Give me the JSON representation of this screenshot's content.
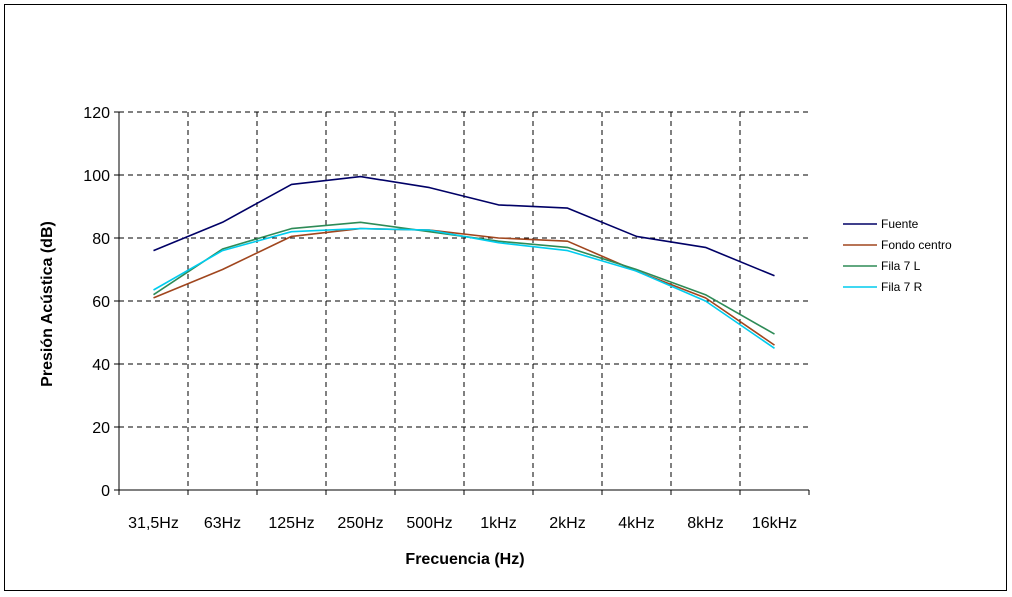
{
  "chart_data": {
    "type": "line",
    "xlabel": "Frecuencia (Hz)",
    "ylabel": "Presión Acústica (dB)",
    "ylim": [
      0,
      120
    ],
    "yticks": [
      0,
      20,
      40,
      60,
      80,
      100,
      120
    ],
    "grid": true,
    "legend_position": "right",
    "categories": [
      "31,5Hz",
      "63Hz",
      "125Hz",
      "250Hz",
      "500Hz",
      "1kHz",
      "2kHz",
      "4kHz",
      "8kHz",
      "16kHz"
    ],
    "series": [
      {
        "name": "Fuente",
        "color": "#000066",
        "values": [
          76,
          85,
          97,
          99.5,
          96,
          90.5,
          89.5,
          80.5,
          77,
          68
        ]
      },
      {
        "name": "Fondo centro",
        "color": "#A0461E",
        "values": [
          61,
          70,
          80.5,
          83,
          82.5,
          80,
          79,
          69.5,
          61,
          46
        ]
      },
      {
        "name": "Fila 7 L",
        "color": "#2E8B57",
        "values": [
          62,
          76.5,
          83,
          85,
          82,
          79,
          77,
          70,
          62,
          49.5
        ]
      },
      {
        "name": "Fila 7 R",
        "color": "#00CCEE",
        "values": [
          63.5,
          76,
          82,
          83,
          82.5,
          78.5,
          76,
          69.5,
          60,
          45
        ]
      }
    ]
  }
}
